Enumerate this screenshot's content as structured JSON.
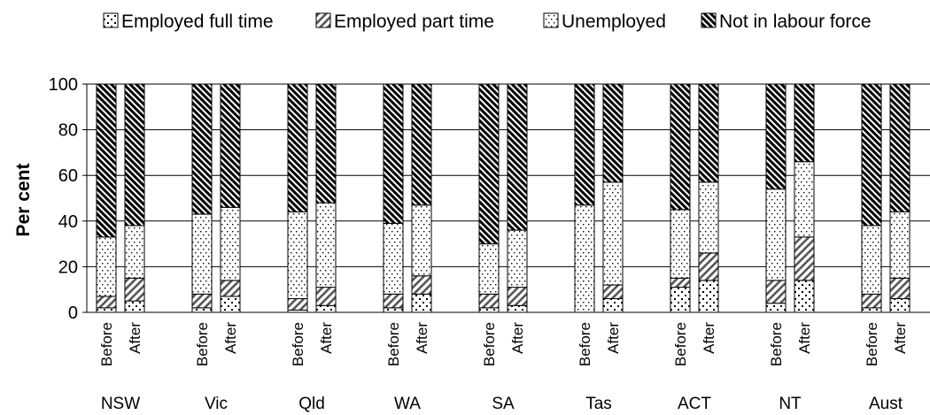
{
  "chart_data": {
    "type": "bar",
    "stacked": true,
    "title": "",
    "xlabel": "",
    "ylabel": "Per cent",
    "ylim": [
      0,
      100
    ],
    "yticks": [
      0,
      20,
      40,
      60,
      80,
      100
    ],
    "grid": true,
    "legend_position": "top",
    "groups": [
      "NSW",
      "Vic",
      "Qld",
      "WA",
      "SA",
      "Tas",
      "ACT",
      "NT",
      "Aust"
    ],
    "sub_categories": [
      "Before",
      "After"
    ],
    "categories": [
      "NSW Before",
      "NSW After",
      "Vic Before",
      "Vic After",
      "Qld Before",
      "Qld After",
      "WA Before",
      "WA After",
      "SA Before",
      "SA After",
      "Tas Before",
      "Tas After",
      "ACT Before",
      "ACT After",
      "NT Before",
      "NT After",
      "Aust Before",
      "Aust After"
    ],
    "series": [
      {
        "name": "Employed full time",
        "pattern": "check",
        "values": [
          2,
          5,
          2,
          7,
          1,
          3,
          2,
          8,
          2,
          3,
          0,
          6,
          11,
          14,
          4,
          14,
          2,
          6
        ]
      },
      {
        "name": "Employed part time",
        "pattern": "diag",
        "values": [
          5,
          10,
          6,
          7,
          5,
          8,
          6,
          8,
          6,
          8,
          0,
          6,
          4,
          12,
          10,
          19,
          6,
          9
        ]
      },
      {
        "name": "Unemployed",
        "pattern": "dots",
        "values": [
          26,
          23,
          35,
          32,
          38,
          37,
          31,
          31,
          22,
          25,
          47,
          45,
          30,
          31,
          40,
          33,
          30,
          29
        ]
      },
      {
        "name": "Not in labour force",
        "pattern": "dense",
        "values": [
          67,
          62,
          57,
          54,
          56,
          52,
          61,
          53,
          70,
          64,
          53,
          43,
          55,
          43,
          46,
          34,
          62,
          56
        ]
      }
    ]
  }
}
